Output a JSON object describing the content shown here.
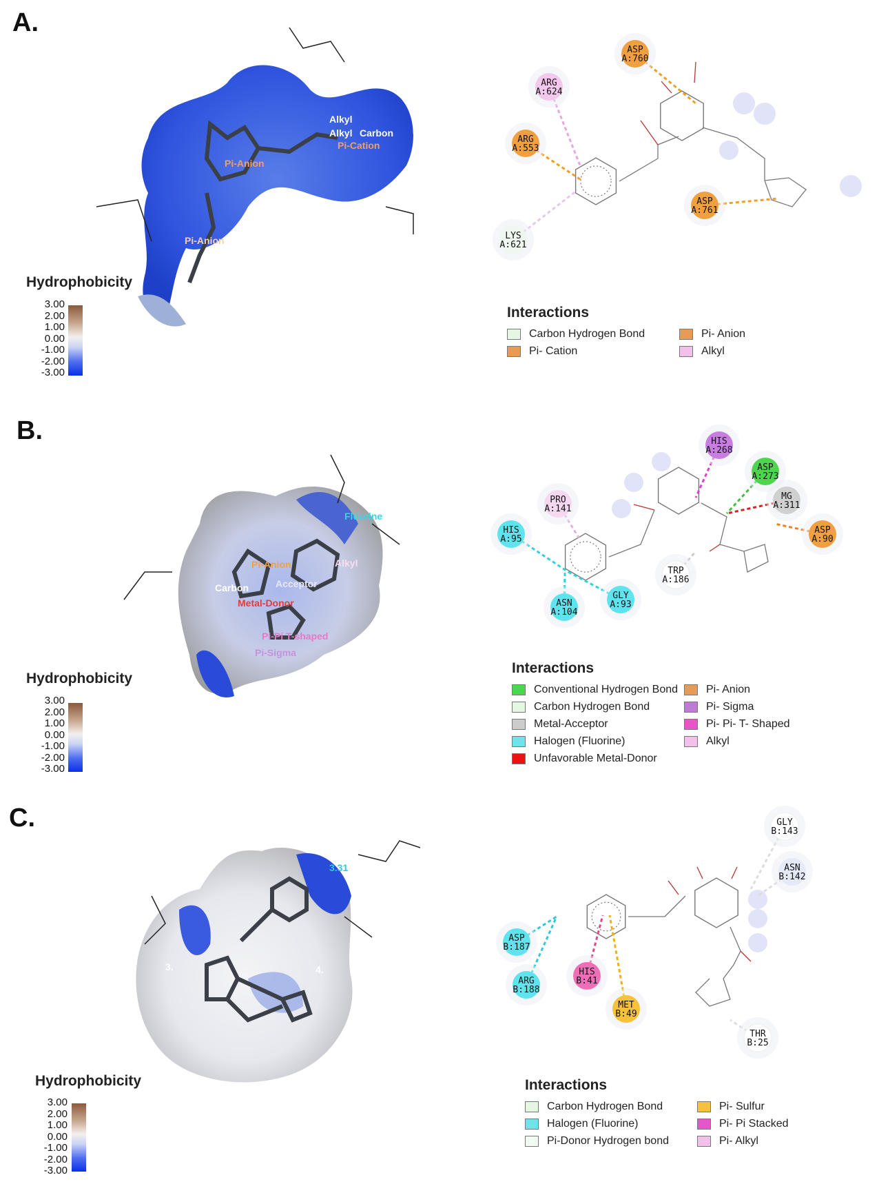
{
  "panels": [
    {
      "letter": "A.",
      "hydrophobicity": {
        "title": "Hydrophobicity",
        "ticks": [
          "3.00",
          "2.00",
          "1.00",
          "0.00",
          "-1.00",
          "-2.00",
          "-3.00"
        ]
      },
      "surface_labels": [
        "Alkyl",
        "Alkyl",
        "Carbon",
        "Pi-Cation",
        "Pi-Anion",
        "Pi-Anion"
      ],
      "residues": [
        {
          "name": "ASP",
          "id": "A:760",
          "color": "#f0a040"
        },
        {
          "name": "ARG",
          "id": "A:624",
          "color": "#f3c8ec"
        },
        {
          "name": "ARG",
          "id": "A:553",
          "color": "#f0a040"
        },
        {
          "name": "ASP",
          "id": "A:761",
          "color": "#f0a040"
        },
        {
          "name": "LYS",
          "id": "A:621",
          "color": "#eef8ee"
        }
      ],
      "legend": {
        "title": "Interactions",
        "items": [
          {
            "label": "Carbon Hydrogen Bond",
            "color": "#e3f7e3"
          },
          {
            "label": "Pi- Anion",
            "color": "#e79b55"
          },
          {
            "label": "Pi- Cation",
            "color": "#e79b55"
          },
          {
            "label": "Alkyl",
            "color": "#f3c0ea"
          }
        ]
      }
    },
    {
      "letter": "B.",
      "hydrophobicity": {
        "title": "Hydrophobicity",
        "ticks": [
          "3.00",
          "2.00",
          "1.00",
          "0.00",
          "-1.00",
          "-2.00",
          "-3.00"
        ]
      },
      "surface_labels": [
        "Fluorine",
        "Alkyl",
        "Pi-Anion",
        "Carbon",
        "Acceptor",
        "Metal-Donor",
        "Pi-Pi T-shaped",
        "Pi-Sigma"
      ],
      "residues": [
        {
          "name": "HIS",
          "id": "A:268",
          "color": "#c77ee0"
        },
        {
          "name": "ASP",
          "id": "A:273",
          "color": "#4fd44f"
        },
        {
          "name": "MG",
          "id": "A:311",
          "color": "#d0d0d0"
        },
        {
          "name": "ASP",
          "id": "A:90",
          "color": "#f0a040"
        },
        {
          "name": "PRO",
          "id": "A:141",
          "color": "#f6d8f0"
        },
        {
          "name": "HIS",
          "id": "A:95",
          "color": "#5fe3ee"
        },
        {
          "name": "ASN",
          "id": "A:104",
          "color": "#5fe3ee"
        },
        {
          "name": "GLY",
          "id": "A:93",
          "color": "#5fe3ee"
        },
        {
          "name": "TRP",
          "id": "A:186",
          "color": "#ffffff"
        }
      ],
      "legend": {
        "title": "Interactions",
        "items": [
          {
            "label": "Conventional Hydrogen Bond",
            "color": "#4bd64b"
          },
          {
            "label": "Pi- Anion",
            "color": "#e79b55"
          },
          {
            "label": "Carbon Hydrogen Bond",
            "color": "#e3f7e3"
          },
          {
            "label": "Pi- Sigma",
            "color": "#c07ad8"
          },
          {
            "label": "Metal-Acceptor",
            "color": "#cccccc"
          },
          {
            "label": "Pi- Pi- T- Shaped",
            "color": "#e855c8"
          },
          {
            "label": "Halogen (Fluorine)",
            "color": "#6fe3ea"
          },
          {
            "label": "Alkyl",
            "color": "#f3c0ea"
          },
          {
            "label": "Unfavorable Metal-Donor",
            "color": "#ee1111"
          }
        ]
      }
    },
    {
      "letter": "C.",
      "hydrophobicity": {
        "title": "Hydrophobicity",
        "ticks": [
          "3.00",
          "2.00",
          "1.00",
          "0.00",
          "-1.00",
          "-2.00",
          "-3.00"
        ]
      },
      "surface_labels": [
        "3.31",
        "3.",
        "4."
      ],
      "residues": [
        {
          "name": "GLY",
          "id": "B:143",
          "color": "#ffffff"
        },
        {
          "name": "ASN",
          "id": "B:142",
          "color": "#e4eaf8"
        },
        {
          "name": "ASP",
          "id": "B:187",
          "color": "#5fe3ee"
        },
        {
          "name": "ARG",
          "id": "B:188",
          "color": "#5fe3ee"
        },
        {
          "name": "HIS",
          "id": "B:41",
          "color": "#ee6fb8"
        },
        {
          "name": "MET",
          "id": "B:49",
          "color": "#f6c23a"
        },
        {
          "name": "THR",
          "id": "B:25",
          "color": "#ffffff"
        }
      ],
      "legend": {
        "title": "Interactions",
        "items": [
          {
            "label": "Carbon Hydrogen Bond",
            "color": "#e3f7e3"
          },
          {
            "label": "Pi- Sulfur",
            "color": "#f6c23a"
          },
          {
            "label": "Halogen (Fluorine)",
            "color": "#6fe3ea"
          },
          {
            "label": "Pi- Pi Stacked",
            "color": "#e855c8"
          },
          {
            "label": "Pi-Donor Hydrogen bond",
            "color": "#f2fbf2"
          },
          {
            "label": "Pi- Alkyl",
            "color": "#f3c0ea"
          }
        ]
      }
    }
  ]
}
